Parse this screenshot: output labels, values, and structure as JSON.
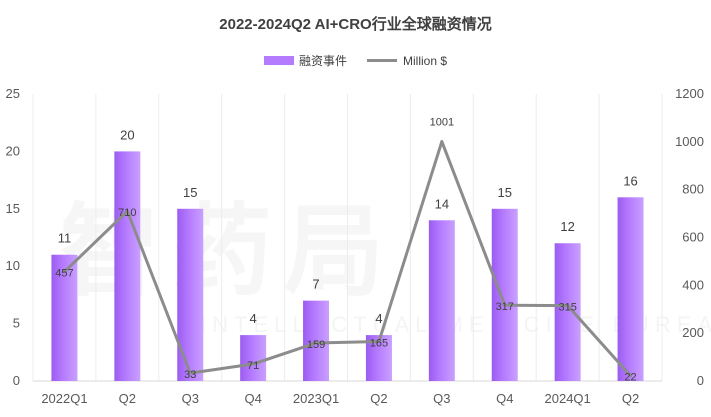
{
  "watermark": {
    "main": "智药局",
    "sub": "INTELLECTUAL MEDICINE BUREAU"
  },
  "chart_data": {
    "type": "bar",
    "title": "2022-2024Q2 AI+CRO行业全球融资情况",
    "categories": [
      "2022Q1",
      "Q2",
      "Q3",
      "Q4",
      "2023Q1",
      "Q2",
      "Q3",
      "Q4",
      "2024Q1",
      "Q2"
    ],
    "series": [
      {
        "name": "融资事件",
        "kind": "bar",
        "axis": "left",
        "color": "#b57bff",
        "values": [
          11,
          20,
          15,
          4,
          7,
          4,
          14,
          15,
          12,
          16
        ]
      },
      {
        "name": "Million  $",
        "kind": "line",
        "axis": "right",
        "color": "#8c8c8c",
        "values": [
          457,
          710,
          33,
          71,
          159,
          165,
          1001,
          317,
          315,
          22
        ]
      }
    ],
    "y_left": {
      "min": 0,
      "max": 25,
      "ticks": [
        0,
        5,
        10,
        15,
        20,
        25
      ]
    },
    "y_right": {
      "min": 0,
      "max": 1200,
      "ticks": [
        0,
        200,
        400,
        600,
        800,
        1000,
        1200
      ]
    },
    "legend_position": "top"
  }
}
